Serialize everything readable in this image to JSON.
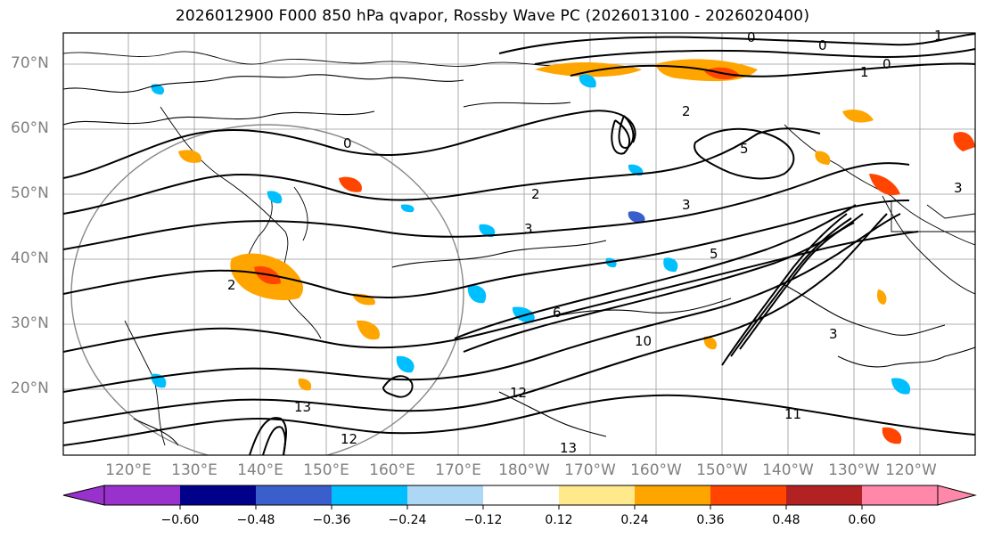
{
  "title": "2026012900 F000 850 hPa qvapor, Rossby Wave PC (2026013100 - 2026020400)",
  "lat_labels": [
    "70°N",
    "60°N",
    "50°N",
    "40°N",
    "30°N",
    "20°N"
  ],
  "lon_labels": [
    "120°E",
    "130°E",
    "140°E",
    "150°E",
    "160°E",
    "170°E",
    "180°W",
    "170°W",
    "160°W",
    "150°W",
    "140°W",
    "130°W",
    "120°W"
  ],
  "colorbar": {
    "colors": [
      "#9932cc",
      "#00008b",
      "#3a5fcd",
      "#00bfff",
      "#add8f5",
      "#ffffff",
      "#ffe98a",
      "#ffa500",
      "#ff4500",
      "#b22222",
      "#ff88aa"
    ],
    "tick_labels": [
      "−0.60",
      "−0.48",
      "−0.36",
      "−0.24",
      "−0.12",
      "0.12",
      "0.24",
      "0.36",
      "0.48",
      "0.60"
    ]
  },
  "contour_labels": [
    "0",
    "0",
    "0",
    "0",
    "1",
    "1",
    "2",
    "2",
    "2",
    "3",
    "3",
    "3",
    "3",
    "5",
    "5",
    "6",
    "10",
    "11",
    "12",
    "12",
    "13",
    "13"
  ]
}
